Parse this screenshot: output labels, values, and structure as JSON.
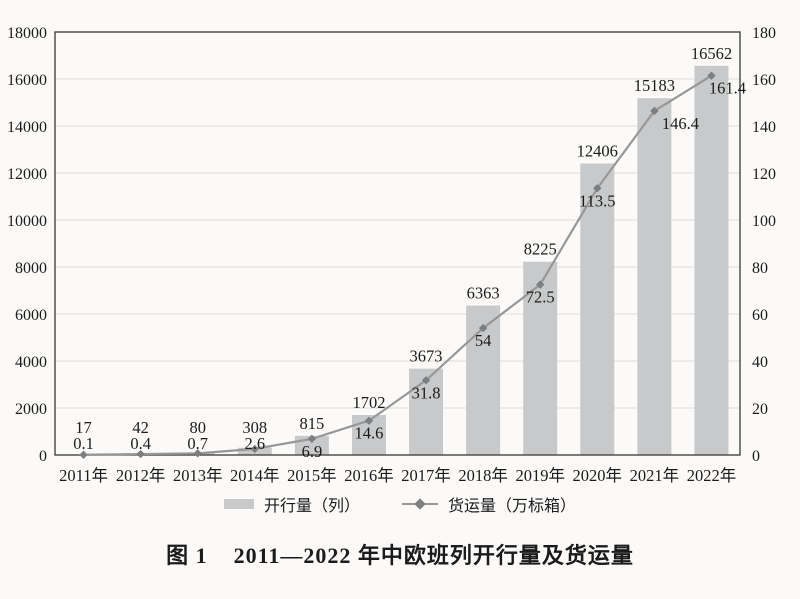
{
  "page": {
    "background_color": "#fbfaf8"
  },
  "caption": {
    "figure_label": "图 1",
    "title": "2011—2022 年中欧班列开行量及货运量"
  },
  "chart_data": {
    "type": "bar+line",
    "title": "图 1 2011—2022 年中欧班列开行量及货运量",
    "categories": [
      "2011年",
      "2012年",
      "2013年",
      "2014年",
      "2015年",
      "2016年",
      "2017年",
      "2018年",
      "2019年",
      "2020年",
      "2021年",
      "2022年"
    ],
    "series": [
      {
        "name": "开行量（列）",
        "type": "bar",
        "axis": "left",
        "values": [
          17,
          42,
          80,
          308,
          815,
          1702,
          3673,
          6363,
          8225,
          12406,
          15183,
          16562
        ],
        "color": "#c8c9ca"
      },
      {
        "name": "货运量（万标箱）",
        "type": "line",
        "axis": "right",
        "marker": "diamond",
        "values": [
          0.1,
          0.4,
          0.7,
          2.6,
          6.9,
          14.6,
          31.8,
          54,
          72.5,
          113.5,
          146.4,
          161.4
        ],
        "color": "#979797",
        "marker_color": "#7c7e80"
      }
    ],
    "left_axis": {
      "min": 0,
      "max": 18000,
      "step": 2000
    },
    "right_axis": {
      "min": 0,
      "max": 180,
      "step": 20
    },
    "grid": true,
    "legend_position": "bottom",
    "colors": {
      "gridline": "#dcdcdc",
      "plot_border": "#454545",
      "text": "#1b1b1b"
    }
  }
}
